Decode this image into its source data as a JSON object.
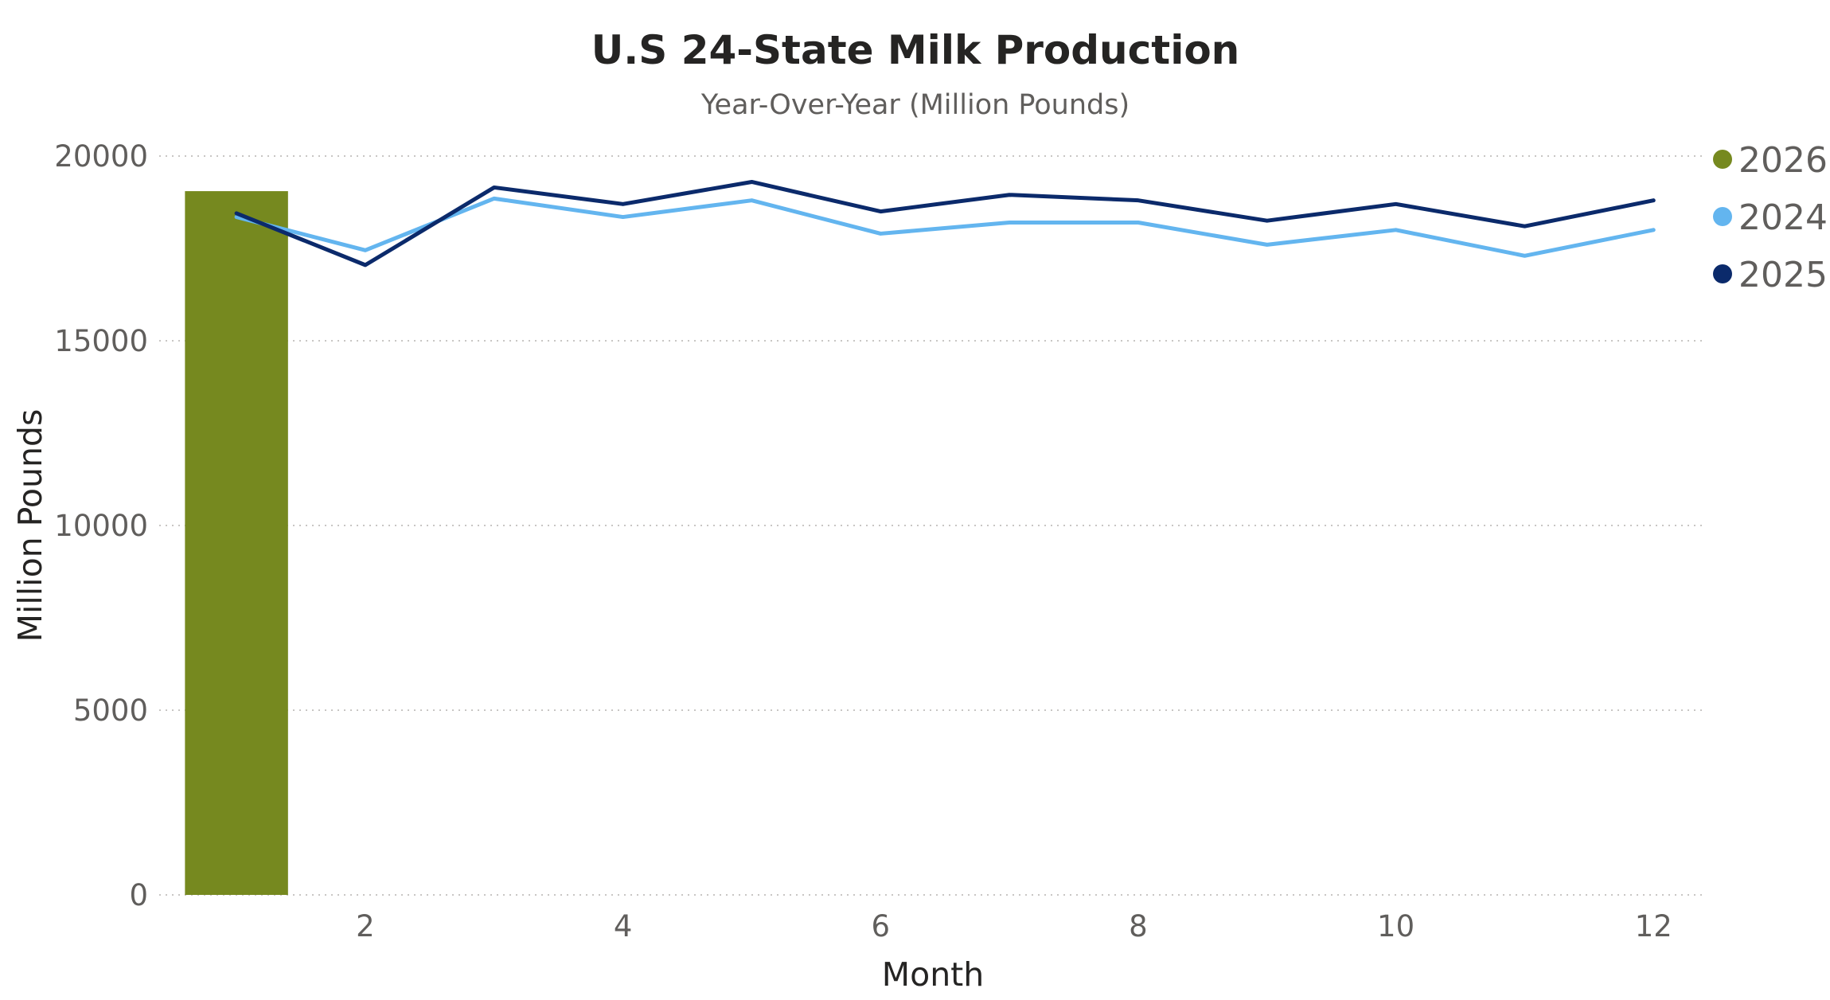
{
  "chart_data": {
    "type": "bar+line",
    "title": "U.S 24-State Milk Production",
    "subtitle": "Year-Over-Year (Million Pounds)",
    "xlabel": "Month",
    "ylabel": "Million Pounds",
    "xlim": [
      0.4,
      12.4
    ],
    "ylim": [
      0,
      20000
    ],
    "x_ticks": [
      2,
      4,
      6,
      8,
      10,
      12
    ],
    "y_ticks": [
      0,
      5000,
      10000,
      15000,
      20000
    ],
    "grid": true,
    "legend_position": "top-right",
    "series": [
      {
        "name": "2026",
        "type": "bar",
        "color": "#76891f",
        "x": [
          1
        ],
        "values": [
          19050
        ]
      },
      {
        "name": "2024",
        "type": "line",
        "color": "#63b5ef",
        "x": [
          1,
          2,
          3,
          4,
          5,
          6,
          7,
          8,
          9,
          10,
          11,
          12
        ],
        "values": [
          18350,
          17450,
          18850,
          18350,
          18800,
          17900,
          18200,
          18200,
          17600,
          18000,
          17300,
          18000
        ]
      },
      {
        "name": "2025",
        "type": "line",
        "color": "#0b2a6b",
        "x": [
          1,
          2,
          3,
          4,
          5,
          6,
          7,
          8,
          9,
          10,
          11,
          12
        ],
        "values": [
          18450,
          17050,
          19150,
          18700,
          19300,
          18500,
          18950,
          18800,
          18250,
          18700,
          18100,
          18800
        ]
      }
    ]
  }
}
